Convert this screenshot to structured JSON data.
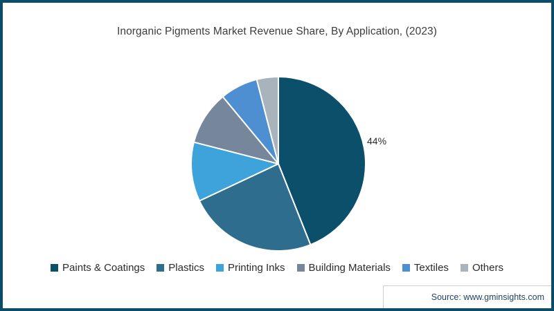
{
  "chart_data": {
    "type": "pie",
    "title": "Inorganic Pigments Market Revenue Share, By Application, (2023)",
    "start_angle_deg": 0,
    "direction": "clockwise",
    "legend_position": "bottom",
    "values_unit": "%",
    "slices": [
      {
        "label": "Paints & Coatings",
        "value": 44,
        "color": "#0b4f6b",
        "shown_label": "44%"
      },
      {
        "label": "Plastics",
        "value": 24,
        "color": "#2e6d8e",
        "shown_label": ""
      },
      {
        "label": "Printing Inks",
        "value": 11,
        "color": "#3ea2db",
        "shown_label": ""
      },
      {
        "label": "Building Materials",
        "value": 10,
        "color": "#77879b",
        "shown_label": ""
      },
      {
        "label": "Textiles",
        "value": 7,
        "color": "#4e8fd1",
        "shown_label": ""
      },
      {
        "label": "Others",
        "value": 4,
        "color": "#a9b3bc",
        "shown_label": ""
      }
    ]
  },
  "source_label": "Source: www.gminsights.com",
  "colors": {
    "frame_border": "#0d4c68",
    "slice_separator": "#ffffff",
    "title_text": "#3c3c3c",
    "legend_text": "#2b2b2b",
    "source_text": "#22455f"
  }
}
